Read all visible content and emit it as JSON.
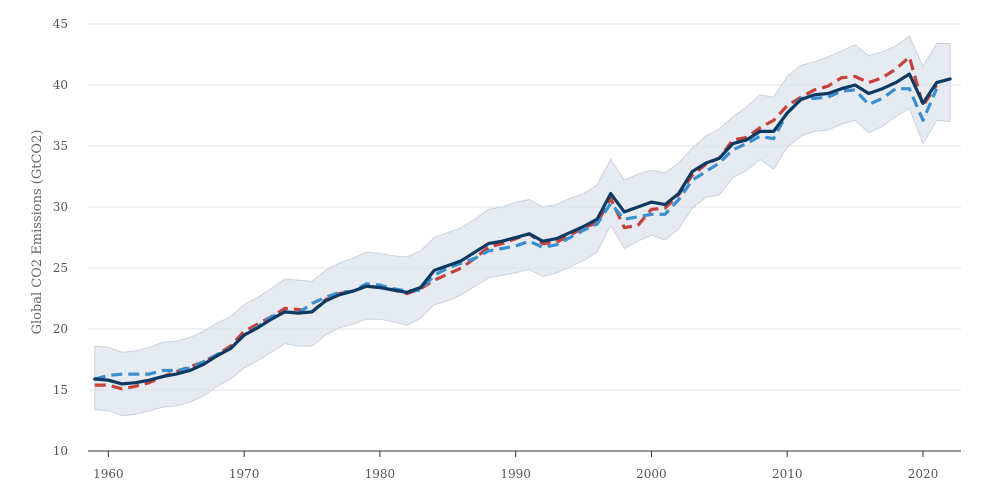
{
  "chart_data": {
    "type": "line",
    "title": "",
    "xlabel": "",
    "ylabel": "Global CO2 Emissions (GtCO2)",
    "xlim": [
      1958.5,
      2022.8
    ],
    "ylim": [
      10,
      45
    ],
    "xticks": [
      1960,
      1970,
      1980,
      1990,
      2000,
      2010,
      2020
    ],
    "yticks": [
      10,
      15,
      20,
      25,
      30,
      35,
      40,
      45
    ],
    "grid": "horizontal",
    "legend": "none",
    "colors": {
      "band": "#dbe2ec",
      "band_edge": "#c9d3df",
      "solid": "#0d3a63",
      "red": "#c6423a",
      "blue": "#3a8fd0",
      "axis": "#333333"
    },
    "x": [
      1959,
      1960,
      1961,
      1962,
      1963,
      1964,
      1965,
      1966,
      1967,
      1968,
      1969,
      1970,
      1971,
      1972,
      1973,
      1974,
      1975,
      1976,
      1977,
      1978,
      1979,
      1980,
      1981,
      1982,
      1983,
      1984,
      1985,
      1986,
      1987,
      1988,
      1989,
      1990,
      1991,
      1992,
      1993,
      1994,
      1995,
      1996,
      1997,
      1998,
      1999,
      2000,
      2001,
      2002,
      2003,
      2004,
      2005,
      2006,
      2007,
      2008,
      2009,
      2010,
      2011,
      2012,
      2013,
      2014,
      2015,
      2016,
      2017,
      2018,
      2019,
      2020,
      2021,
      2022
    ],
    "series": [
      {
        "role": "band_upper",
        "style": "band",
        "values": [
          18.6,
          18.5,
          18.1,
          18.2,
          18.5,
          18.9,
          19.0,
          19.3,
          19.8,
          20.5,
          21.0,
          22.0,
          22.6,
          23.3,
          24.1,
          24.0,
          23.9,
          24.8,
          25.4,
          25.8,
          26.3,
          26.2,
          26.0,
          25.9,
          26.4,
          27.5,
          27.9,
          28.3,
          29.0,
          29.8,
          30.0,
          30.4,
          30.6,
          30.0,
          30.2,
          30.7,
          31.1,
          31.8,
          33.9,
          32.2,
          32.7,
          33.0,
          32.8,
          33.6,
          34.8,
          35.8,
          36.4,
          37.4,
          38.2,
          39.2,
          39.0,
          40.7,
          41.6,
          41.9,
          42.3,
          42.8,
          43.3,
          42.4,
          42.7,
          43.2,
          44.0,
          41.5,
          43.4,
          43.4
        ]
      },
      {
        "role": "band_lower",
        "style": "band",
        "values": [
          13.4,
          13.3,
          12.9,
          13.0,
          13.3,
          13.6,
          13.7,
          14.0,
          14.5,
          15.3,
          15.9,
          16.8,
          17.4,
          18.1,
          18.8,
          18.6,
          18.6,
          19.5,
          20.1,
          20.4,
          20.8,
          20.8,
          20.6,
          20.3,
          20.9,
          22.0,
          22.3,
          22.8,
          23.5,
          24.2,
          24.4,
          24.6,
          24.9,
          24.3,
          24.6,
          25.1,
          25.6,
          26.3,
          28.5,
          26.6,
          27.2,
          27.7,
          27.3,
          28.2,
          29.9,
          30.8,
          31.0,
          32.4,
          33.0,
          33.9,
          33.1,
          34.9,
          35.8,
          36.2,
          36.3,
          36.8,
          37.1,
          36.1,
          36.6,
          37.4,
          38.1,
          35.2,
          37.1,
          37.0
        ]
      },
      {
        "role": "estimate_red",
        "style": "dashed",
        "values": [
          15.4,
          15.4,
          15.1,
          15.3,
          15.6,
          16.1,
          16.5,
          16.9,
          17.3,
          17.9,
          18.6,
          19.8,
          20.4,
          21.0,
          21.7,
          21.6,
          21.4,
          22.4,
          22.9,
          23.1,
          23.5,
          23.4,
          23.2,
          22.9,
          23.3,
          24.0,
          24.5,
          25.0,
          25.8,
          26.7,
          27.0,
          27.4,
          27.8,
          27.0,
          27.1,
          27.7,
          28.3,
          28.7,
          30.7,
          28.3,
          28.5,
          29.8,
          29.9,
          31.0,
          32.6,
          33.5,
          34.0,
          35.5,
          35.7,
          36.5,
          37.1,
          38.3,
          39.0,
          39.6,
          39.9,
          40.6,
          40.7,
          40.2,
          40.6,
          41.3,
          42.3,
          38.3,
          40.0,
          null
        ]
      },
      {
        "role": "estimate_blue",
        "style": "dashed",
        "values": [
          15.9,
          16.2,
          16.3,
          16.3,
          16.3,
          16.6,
          16.6,
          16.8,
          17.3,
          17.9,
          18.4,
          19.5,
          20.2,
          21.0,
          21.4,
          21.3,
          22.1,
          22.6,
          23.0,
          23.1,
          23.7,
          23.6,
          23.3,
          23.1,
          23.2,
          24.4,
          25.0,
          25.4,
          25.8,
          26.4,
          26.6,
          26.8,
          27.2,
          26.7,
          26.9,
          27.5,
          28.1,
          28.6,
          30.3,
          29.0,
          29.2,
          29.4,
          29.4,
          30.6,
          32.2,
          32.9,
          33.6,
          34.7,
          35.2,
          35.8,
          35.6,
          37.7,
          38.9,
          38.9,
          39.0,
          39.5,
          39.6,
          38.4,
          38.9,
          39.7,
          39.7,
          37.1,
          39.7,
          null
        ]
      },
      {
        "role": "central",
        "style": "solid",
        "values": [
          15.9,
          15.8,
          15.5,
          15.6,
          15.8,
          16.1,
          16.3,
          16.6,
          17.1,
          17.8,
          18.4,
          19.5,
          20.1,
          20.8,
          21.4,
          21.3,
          21.4,
          22.3,
          22.8,
          23.1,
          23.5,
          23.4,
          23.2,
          23.0,
          23.4,
          24.8,
          25.2,
          25.6,
          26.3,
          27.0,
          27.2,
          27.5,
          27.8,
          27.2,
          27.4,
          27.9,
          28.4,
          29.0,
          31.1,
          29.6,
          30.0,
          30.4,
          30.2,
          31.1,
          32.9,
          33.6,
          34.0,
          35.2,
          35.5,
          36.2,
          36.2,
          37.7,
          38.8,
          39.2,
          39.3,
          39.7,
          40.0,
          39.3,
          39.7,
          40.2,
          40.9,
          38.5,
          40.2,
          40.5
        ]
      }
    ]
  }
}
